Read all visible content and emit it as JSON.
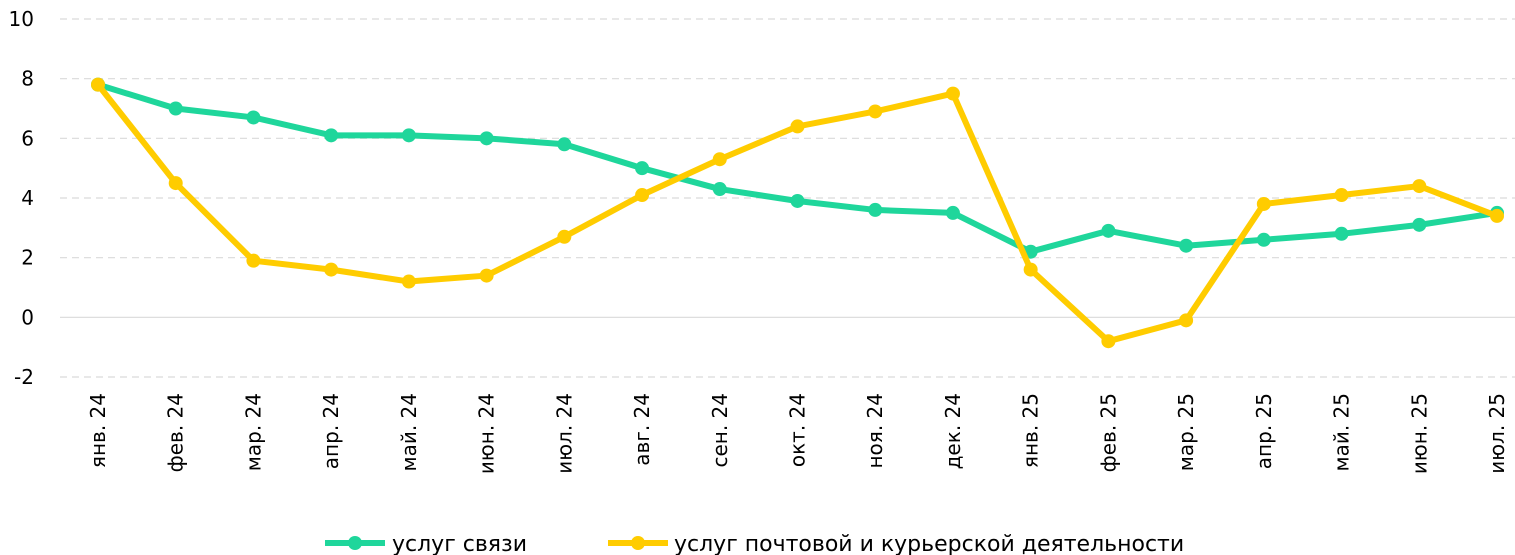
{
  "chart_data": {
    "type": "line",
    "title": "",
    "xlabel": "",
    "ylabel": "",
    "ylim": [
      -2,
      10
    ],
    "yticks": [
      -2,
      0,
      2,
      4,
      6,
      8,
      10
    ],
    "grid": true,
    "legend_position": "bottom",
    "categories": [
      "янв. 24",
      "фев. 24",
      "мар. 24",
      "апр. 24",
      "май. 24",
      "июн. 24",
      "июл. 24",
      "авг. 24",
      "сен. 24",
      "окт. 24",
      "ноя. 24",
      "дек. 24",
      "янв. 25",
      "фев. 25",
      "мар. 25",
      "апр. 25",
      "май. 25",
      "июн. 25",
      "июл. 25"
    ],
    "series": [
      {
        "name": "услуг связи",
        "color": "#1fd69b",
        "values": [
          7.8,
          7.0,
          6.7,
          6.1,
          6.1,
          6.0,
          5.8,
          5.0,
          4.3,
          3.9,
          3.6,
          3.5,
          2.2,
          2.9,
          2.4,
          2.6,
          2.8,
          3.1,
          3.5
        ]
      },
      {
        "name": "услуг почтовой и курьерской деятельности",
        "color": "#ffcc00",
        "values": [
          7.8,
          4.5,
          1.9,
          1.6,
          1.2,
          1.4,
          2.7,
          4.1,
          5.3,
          6.4,
          6.9,
          7.5,
          1.6,
          -0.8,
          -0.1,
          3.8,
          4.1,
          4.4,
          3.4
        ]
      }
    ]
  }
}
